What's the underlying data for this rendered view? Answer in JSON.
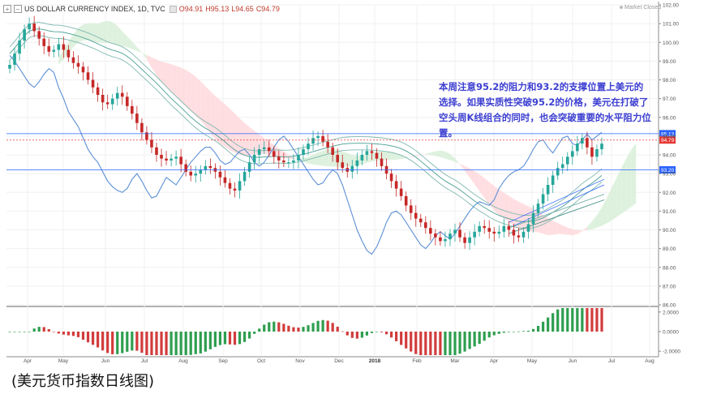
{
  "header": {
    "symbol": "US DOLLAR CURRENCY INDEX, 1D, TVC",
    "ohlc": [
      "O94.91",
      "H95.13",
      "L94.65",
      "C94.79"
    ],
    "status": "Market Closed"
  },
  "annotation": "本周注意95.2的阻力和93.2的支撑位置上美元的选择。如果实质性突破95.2的价格，美元在打破了空头周K线组合的同时，也会突破重要的水平阻力位置。",
  "caption": "(美元货币指数日线图)",
  "chart_data": {
    "type": "line",
    "series": [
      {
        "values": [
          98.8,
          99.4,
          100.1,
          100.7,
          101.0,
          100.6,
          100.2,
          99.8,
          99.5,
          99.6,
          99.9,
          99.6,
          99.2,
          98.9,
          98.7,
          98.4,
          98.0,
          97.6,
          97.2,
          96.8,
          96.7,
          97.0,
          97.3,
          97.1,
          96.6,
          96.2,
          95.7,
          95.2,
          94.8,
          94.4,
          94.0,
          93.8,
          93.7,
          93.8,
          93.9,
          93.5,
          93.1,
          92.9,
          93.0,
          93.2,
          93.4,
          93.3,
          93.1,
          92.8,
          92.5,
          92.2,
          92.1,
          92.6,
          93.1,
          93.6,
          94.0,
          94.3,
          94.4,
          94.2,
          93.9,
          93.7,
          93.6,
          93.6,
          93.7,
          94.0,
          94.3,
          94.6,
          94.9,
          95.0,
          94.7,
          94.4,
          94.0,
          93.6,
          93.3,
          93.1,
          93.4,
          93.7,
          94.0,
          94.2,
          94.1,
          93.8,
          93.4,
          93.0,
          92.6,
          92.2,
          91.8,
          91.3,
          90.9,
          90.6,
          90.4,
          90.1,
          89.8,
          89.6,
          89.4,
          89.5,
          89.8,
          90.0,
          89.6,
          89.3,
          89.6,
          89.9,
          90.2,
          90.1,
          89.9,
          89.8,
          89.9,
          90.2,
          90.0,
          89.7,
          89.6,
          89.9,
          90.3,
          90.9,
          91.4,
          91.9,
          92.4,
          92.9,
          93.3,
          93.5,
          93.9,
          94.2,
          94.6,
          94.9,
          94.4,
          93.9,
          94.3,
          94.6
        ]
      },
      {
        "values": [
          99.3,
          99.0,
          98.6,
          98.2,
          97.8,
          97.6,
          97.9,
          98.3,
          98.6,
          98.4,
          97.6,
          97.0,
          96.3,
          95.9,
          95.5,
          94.9,
          94.3,
          93.9,
          93.6,
          93.1,
          92.6,
          92.3,
          92.1,
          92.0,
          92.2,
          92.7,
          93.0,
          92.6,
          92.1,
          91.7,
          91.8,
          92.3,
          92.8,
          92.6,
          92.4,
          92.8,
          93.2,
          93.6,
          93.9,
          94.2,
          94.4,
          94.4,
          94.1,
          93.7,
          93.5,
          93.6,
          93.9,
          94.2,
          94.3,
          94.0,
          93.6,
          93.4,
          93.6,
          94.0,
          94.4,
          94.8,
          95.0,
          94.7,
          94.3,
          93.9,
          93.5,
          93.1,
          92.7,
          92.4,
          92.5,
          92.9,
          93.2,
          93.0,
          92.4,
          91.6,
          90.8,
          90.0,
          89.4,
          88.9,
          88.7,
          89.1,
          89.7,
          90.4,
          90.9,
          91.0,
          90.8,
          90.4,
          90.0,
          89.6,
          89.2,
          89.0,
          89.3,
          89.7,
          89.9,
          89.7,
          89.5,
          89.8,
          90.2,
          90.6,
          91.0,
          91.3,
          91.5,
          91.4,
          91.3,
          91.6,
          92.2,
          92.6,
          92.9,
          93.1,
          93.2,
          93.4,
          93.8,
          94.3,
          94.7,
          94.8,
          94.4,
          94.1,
          94.5,
          94.9,
          95.0,
          94.6,
          94.5,
          94.8,
          95.1,
          94.8,
          95.0,
          95.2
        ]
      }
    ],
    "price_levels": [
      {
        "label": "95.13",
        "value": 95.13,
        "color": "#2962ff"
      },
      {
        "label": "94.79",
        "value": 94.79,
        "color": "#e53935"
      },
      {
        "label": "93.20",
        "value": 93.2,
        "color": "#2962ff"
      }
    ],
    "xlabels": [
      "Apr",
      "May",
      "Jun",
      "Jul",
      "Aug",
      "Sep",
      "Oct",
      "Nov",
      "Dec",
      "2018",
      "Feb",
      "Mar",
      "Apr",
      "May",
      "Jun",
      "Jul",
      "Aug"
    ],
    "yticks": [
      "102.00",
      "101.00",
      "100.00",
      "99.00",
      "98.00",
      "97.00",
      "96.00",
      "95.00",
      "94.00",
      "93.00",
      "92.00",
      "91.00",
      "90.00",
      "89.00",
      "88.00",
      "87.00",
      "86.00"
    ],
    "ylim": [
      86,
      102
    ],
    "osc_ticks": [
      "2.0000",
      "0.0000",
      "-2.0000"
    ],
    "osc_ylim": [
      -2.4,
      2.4
    ],
    "grid": true,
    "colors": {
      "up": "#26a69a",
      "down": "#c62828",
      "line": "#5b8fd6",
      "cloud_bear": "#ffd8dc",
      "cloud_bull": "#d8eed8"
    }
  }
}
